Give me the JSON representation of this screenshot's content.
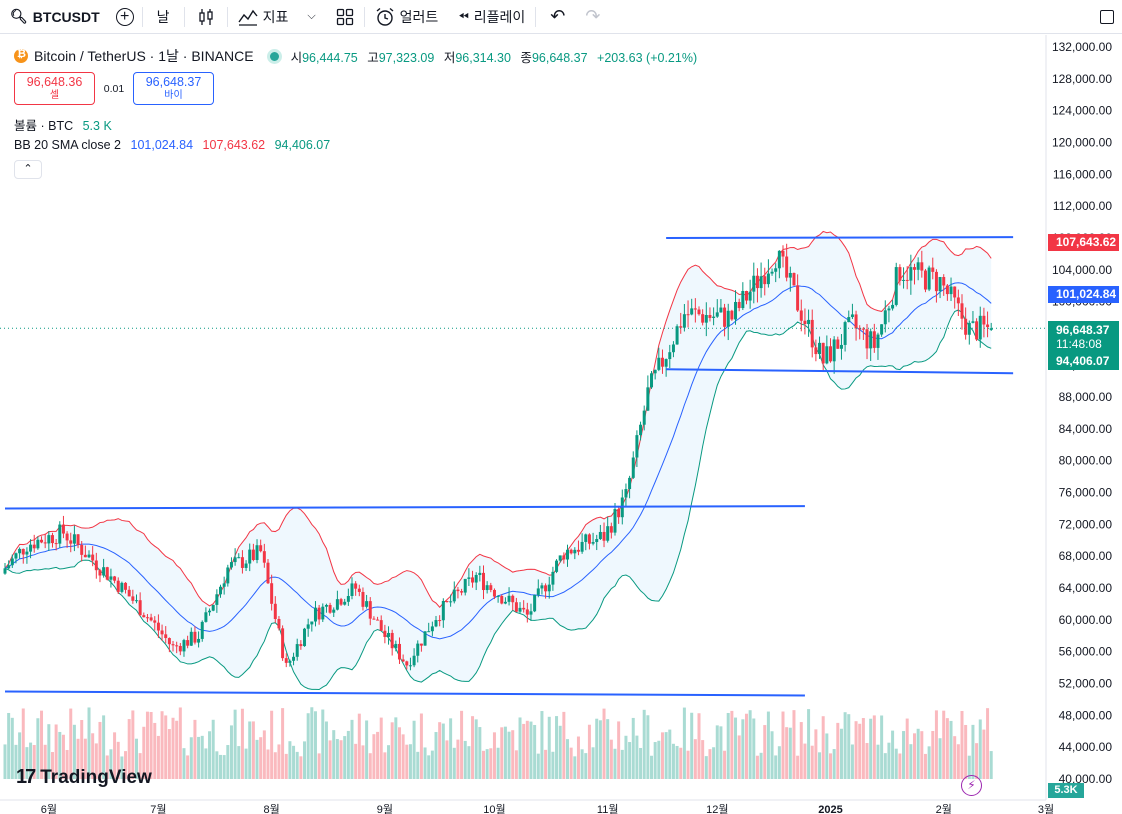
{
  "toolbar": {
    "symbol": "BTCUSDT",
    "interval": "날",
    "indicators": "지표",
    "alert": "얼러트",
    "replay": "리플레이"
  },
  "legend": {
    "title": "Bitcoin / TetherUS · 1날 · BINANCE",
    "open_label": "시",
    "open": "96,444.75",
    "high_label": "고",
    "high": "97,323.09",
    "low_label": "저",
    "low": "96,314.30",
    "close_label": "종",
    "close": "96,648.37",
    "change": "+203.63 (+0.21%)",
    "sell_price": "96,648.36",
    "sell_label": "셀",
    "spread": "0.01",
    "buy_price": "96,648.37",
    "buy_label": "바이",
    "volume_label": "볼륨 · BTC",
    "volume_value": "5.3 K",
    "bb_label": "BB 20 SMA close 2",
    "bb_basis": "101,024.84",
    "bb_upper": "107,643.62",
    "bb_lower": "94,406.07"
  },
  "axis": {
    "price_labels": [
      "132,000.00",
      "128,000.00",
      "124,000.00",
      "120,000.00",
      "116,000.00",
      "112,000.00",
      "108,000.00",
      "104,000.00",
      "100,000.00",
      "96,000.00",
      "92,000.00",
      "88,000.00",
      "84,000.00",
      "80,000.00",
      "76,000.00",
      "72,000.00",
      "68,000.00",
      "64,000.00",
      "60,000.00",
      "56,000.00",
      "52,000.00",
      "48,000.00",
      "44,000.00",
      "40,000.00"
    ],
    "time_labels": [
      "6월",
      "7월",
      "8월",
      "9월",
      "10월",
      "11월",
      "12월",
      "2025",
      "2월",
      "3월"
    ]
  },
  "tags": {
    "upper": "107,643.62",
    "basis": "101,024.84",
    "last": "96,648.37",
    "countdown": "11:48:08",
    "lower": "94,406.07",
    "volume": "5.3K"
  },
  "colors": {
    "up": "#089981",
    "down": "#f23645",
    "basis": "#2962ff",
    "upper": "#f23645",
    "lower": "#089981",
    "trendline": "#2962ff"
  },
  "brand": "TradingView",
  "chart_data": {
    "type": "candlestick",
    "symbol": "BTCUSDT",
    "interval": "1D",
    "y_range": [
      40000,
      132000
    ],
    "x_range": [
      "2024-05-20",
      "2025-03-01"
    ],
    "month_ticks": [
      "2024-06",
      "2024-07",
      "2024-08",
      "2024-09",
      "2024-10",
      "2024-11",
      "2024-12",
      "2025-01",
      "2025-02",
      "2025-03"
    ],
    "close_path_approx": [
      [
        "2024-05-20",
        66500
      ],
      [
        "2024-05-26",
        69500
      ],
      [
        "2024-06-05",
        71000
      ],
      [
        "2024-06-12",
        68000
      ],
      [
        "2024-06-20",
        64500
      ],
      [
        "2024-06-27",
        61000
      ],
      [
        "2024-07-05",
        56500
      ],
      [
        "2024-07-12",
        58000
      ],
      [
        "2024-07-20",
        66500
      ],
      [
        "2024-07-29",
        68500
      ],
      [
        "2024-08-05",
        54000
      ],
      [
        "2024-08-12",
        60500
      ],
      [
        "2024-08-24",
        64000
      ],
      [
        "2024-09-01",
        58000
      ],
      [
        "2024-09-07",
        54500
      ],
      [
        "2024-09-15",
        60500
      ],
      [
        "2024-09-26",
        65500
      ],
      [
        "2024-10-10",
        60500
      ],
      [
        "2024-10-20",
        68500
      ],
      [
        "2024-10-31",
        70500
      ],
      [
        "2024-11-06",
        75500
      ],
      [
        "2024-11-12",
        88500
      ],
      [
        "2024-11-22",
        98500
      ],
      [
        "2024-12-05",
        98000
      ],
      [
        "2024-12-17",
        106000
      ],
      [
        "2024-12-30",
        92500
      ],
      [
        "2025-01-07",
        97000
      ],
      [
        "2025-01-13",
        94500
      ],
      [
        "2025-01-20",
        104000
      ],
      [
        "2025-01-31",
        102500
      ],
      [
        "2025-02-08",
        96500
      ],
      [
        "2025-02-14",
        96648
      ]
    ],
    "last": {
      "open": 96444.75,
      "high": 97323.09,
      "low": 96314.3,
      "close": 96648.37,
      "change": 203.63,
      "change_pct": 0.21
    },
    "bollinger": {
      "period": 20,
      "source": "close",
      "mult": 2,
      "basis": 101024.84,
      "upper": 107643.62,
      "lower": 94406.07
    },
    "trendlines": [
      {
        "from": [
          "2024-05-20",
          74000
        ],
        "to": [
          "2024-12-25",
          74300
        ]
      },
      {
        "from": [
          "2024-05-20",
          51000
        ],
        "to": [
          "2024-12-25",
          50500
        ]
      },
      {
        "from": [
          "2024-11-17",
          108000
        ],
        "to": [
          "2025-02-20",
          108100
        ]
      },
      {
        "from": [
          "2024-11-17",
          91500
        ],
        "to": [
          "2025-02-20",
          91000
        ]
      }
    ],
    "volume": {
      "unit": "BTC",
      "last": 5300
    }
  }
}
